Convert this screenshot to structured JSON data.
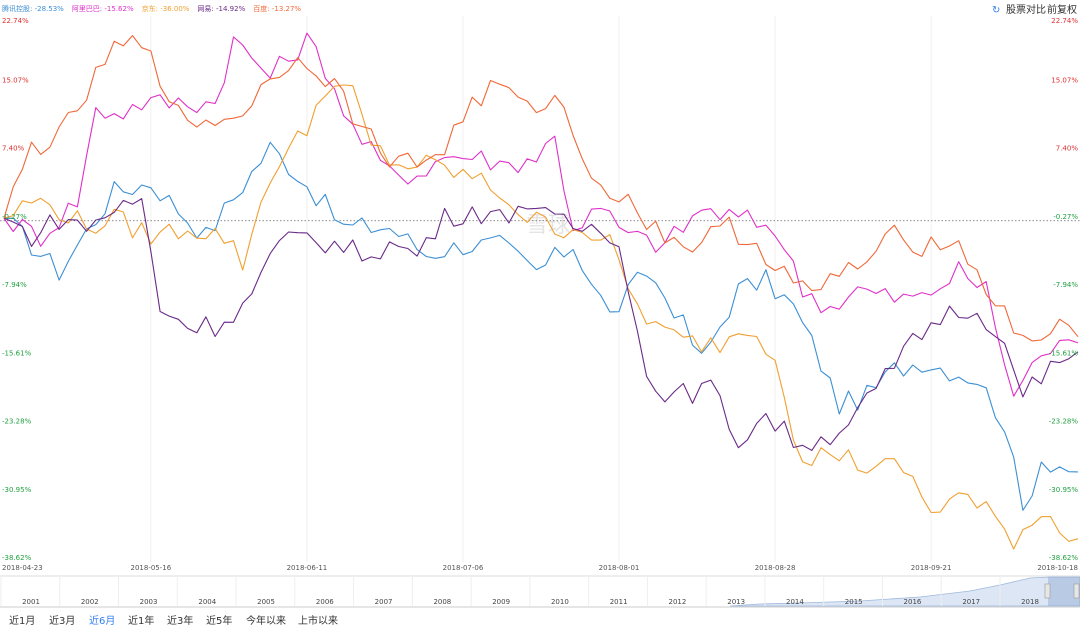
{
  "header": {
    "compare_label": "股票对比",
    "adjust_label": "前复权"
  },
  "legend": [
    {
      "name": "腾讯控股",
      "value": "-28.53%",
      "color": "#3c8fd4"
    },
    {
      "name": "阿里巴巴",
      "value": "-15.62%",
      "color": "#e030c8"
    },
    {
      "name": "京东",
      "value": "-36.00%",
      "color": "#f0a030"
    },
    {
      "name": "网易",
      "value": "-14.92%",
      "color": "#6a2a88"
    },
    {
      "name": "百度",
      "value": "-13.27%",
      "color": "#f06838"
    }
  ],
  "range_buttons": [
    "近1月",
    "近3月",
    "近6月",
    "近1年",
    "近3年",
    "近5年",
    "今年以来",
    "上市以来"
  ],
  "active_range": "近6月",
  "navigator_years": [
    "2001",
    "2002",
    "2003",
    "2004",
    "2005",
    "2006",
    "2007",
    "2008",
    "2009",
    "2010",
    "2011",
    "2012",
    "2013",
    "2014",
    "2015",
    "2016",
    "2017",
    "2018"
  ],
  "watermark_label": "雪球",
  "chart_data": {
    "type": "line",
    "y_axis_left": [
      "22.74%",
      "15.07%",
      "7.40%",
      "-0.27%",
      "-7.94%",
      "-15.61%",
      "-23.28%",
      "-30.95%",
      "-38.62%"
    ],
    "y_axis_right": [
      "22.74%",
      "15.07%",
      "7.40%",
      "-0.27%",
      "-7.94%",
      "-15.61%",
      "-23.28%",
      "-30.95%",
      "-38.62%"
    ],
    "ylim": [
      -38.62,
      22.74
    ],
    "baseline": -0.27,
    "x_ticks": [
      "2018-04-23",
      "2018-05-16",
      "2018-06-11",
      "2018-07-06",
      "2018-08-01",
      "2018-08-28",
      "2018-09-21",
      "2018-10-18"
    ],
    "x_tick_pos": [
      0,
      16,
      33,
      50,
      67,
      84,
      101,
      117
    ],
    "n_points": 118,
    "series": [
      {
        "name": "腾讯控股",
        "color": "#3c8fd4",
        "values": [
          [
            0,
            0
          ],
          [
            6,
            -6
          ],
          [
            12,
            3
          ],
          [
            16,
            4
          ],
          [
            22,
            -2
          ],
          [
            29,
            8
          ],
          [
            32,
            5
          ],
          [
            37,
            -1
          ],
          [
            42,
            -1
          ],
          [
            46,
            -4
          ],
          [
            50,
            -3
          ],
          [
            54,
            -3
          ],
          [
            58,
            -6
          ],
          [
            62,
            -3
          ],
          [
            66,
            -11
          ],
          [
            70,
            -6
          ],
          [
            73,
            -10
          ],
          [
            76,
            -16
          ],
          [
            80,
            -8
          ],
          [
            83,
            -7
          ],
          [
            86,
            -10
          ],
          [
            88,
            -14
          ],
          [
            91,
            -21
          ],
          [
            94,
            -20
          ],
          [
            97,
            -17
          ],
          [
            100,
            -16
          ],
          [
            103,
            -17
          ],
          [
            106,
            -18
          ],
          [
            109,
            -23
          ],
          [
            111,
            -33
          ],
          [
            113,
            -27
          ],
          [
            117,
            -28.5
          ]
        ]
      },
      {
        "name": "阿里巴巴",
        "color": "#e030c8",
        "values": [
          [
            0,
            0
          ],
          [
            4,
            -2
          ],
          [
            8,
            2
          ],
          [
            10,
            12
          ],
          [
            13,
            12
          ],
          [
            15,
            13
          ],
          [
            19,
            13
          ],
          [
            23,
            13
          ],
          [
            25,
            20
          ],
          [
            29,
            16
          ],
          [
            33,
            20
          ],
          [
            35,
            17
          ],
          [
            38,
            10
          ],
          [
            42,
            5
          ],
          [
            45,
            5
          ],
          [
            48,
            7
          ],
          [
            51,
            7
          ],
          [
            55,
            6
          ],
          [
            58,
            7
          ],
          [
            60,
            9
          ],
          [
            62,
            -1
          ],
          [
            65,
            1
          ],
          [
            68,
            -2
          ],
          [
            72,
            -3
          ],
          [
            76,
            1
          ],
          [
            80,
            0
          ],
          [
            84,
            -1
          ],
          [
            87,
            -8
          ],
          [
            90,
            -10
          ],
          [
            93,
            -8
          ],
          [
            97,
            -9
          ],
          [
            100,
            -9
          ],
          [
            104,
            -6
          ],
          [
            107,
            -8
          ],
          [
            110,
            -20
          ],
          [
            113,
            -15
          ],
          [
            117,
            -14
          ]
        ]
      },
      {
        "name": "京东",
        "color": "#f0a030",
        "values": [
          [
            0,
            0
          ],
          [
            3,
            2
          ],
          [
            6,
            1
          ],
          [
            9,
            -1
          ],
          [
            12,
            0
          ],
          [
            16,
            -2
          ],
          [
            20,
            -1
          ],
          [
            24,
            -2
          ],
          [
            26,
            -5
          ],
          [
            29,
            5
          ],
          [
            33,
            10
          ],
          [
            35,
            15
          ],
          [
            38,
            14
          ],
          [
            40,
            8
          ],
          [
            43,
            6
          ],
          [
            46,
            6
          ],
          [
            50,
            5
          ],
          [
            54,
            3
          ],
          [
            57,
            0
          ],
          [
            60,
            -1
          ],
          [
            63,
            -1
          ],
          [
            66,
            -3
          ],
          [
            69,
            -10
          ],
          [
            72,
            -13
          ],
          [
            75,
            -14
          ],
          [
            78,
            -14
          ],
          [
            81,
            -12
          ],
          [
            84,
            -15
          ],
          [
            87,
            -28
          ],
          [
            90,
            -26
          ],
          [
            94,
            -28
          ],
          [
            98,
            -28
          ],
          [
            101,
            -33
          ],
          [
            104,
            -31
          ],
          [
            107,
            -33
          ],
          [
            110,
            -36
          ],
          [
            113,
            -33
          ],
          [
            117,
            -36
          ]
        ]
      },
      {
        "name": "网易",
        "color": "#6a2a88",
        "values": [
          [
            0,
            0
          ],
          [
            3,
            -2
          ],
          [
            6,
            0
          ],
          [
            9,
            -1
          ],
          [
            12,
            1
          ],
          [
            15,
            2
          ],
          [
            17,
            -10
          ],
          [
            20,
            -12
          ],
          [
            23,
            -12
          ],
          [
            26,
            -10
          ],
          [
            30,
            -3
          ],
          [
            33,
            -2
          ],
          [
            36,
            -3
          ],
          [
            39,
            -4
          ],
          [
            42,
            -3
          ],
          [
            45,
            -4
          ],
          [
            48,
            0
          ],
          [
            51,
            1
          ],
          [
            54,
            0
          ],
          [
            57,
            2
          ],
          [
            59,
            0
          ],
          [
            62,
            -1
          ],
          [
            64,
            -1
          ],
          [
            67,
            -2
          ],
          [
            70,
            -18
          ],
          [
            73,
            -20
          ],
          [
            77,
            -19
          ],
          [
            80,
            -25
          ],
          [
            83,
            -22
          ],
          [
            86,
            -25
          ],
          [
            89,
            -25
          ],
          [
            93,
            -22
          ],
          [
            96,
            -18
          ],
          [
            99,
            -14
          ],
          [
            102,
            -11
          ],
          [
            105,
            -10
          ],
          [
            108,
            -12
          ],
          [
            111,
            -20
          ],
          [
            114,
            -17
          ],
          [
            117,
            -15
          ]
        ]
      },
      {
        "name": "百度",
        "color": "#f06838",
        "values": [
          [
            0,
            0
          ],
          [
            3,
            8
          ],
          [
            6,
            9
          ],
          [
            9,
            14
          ],
          [
            12,
            19
          ],
          [
            16,
            20
          ],
          [
            18,
            12
          ],
          [
            21,
            11
          ],
          [
            24,
            11
          ],
          [
            27,
            13
          ],
          [
            30,
            17
          ],
          [
            33,
            18
          ],
          [
            36,
            15
          ],
          [
            39,
            10
          ],
          [
            42,
            7
          ],
          [
            45,
            6
          ],
          [
            48,
            8
          ],
          [
            51,
            13
          ],
          [
            54,
            15
          ],
          [
            57,
            12
          ],
          [
            60,
            14
          ],
          [
            63,
            7
          ],
          [
            66,
            3
          ],
          [
            69,
            1
          ],
          [
            72,
            -2
          ],
          [
            75,
            -3
          ],
          [
            79,
            -1
          ],
          [
            82,
            -3
          ],
          [
            85,
            -6
          ],
          [
            88,
            -9
          ],
          [
            91,
            -6
          ],
          [
            94,
            -5
          ],
          [
            97,
            -2
          ],
          [
            100,
            -3
          ],
          [
            103,
            -2
          ],
          [
            106,
            -6
          ],
          [
            109,
            -11
          ],
          [
            112,
            -14
          ],
          [
            114,
            -12
          ],
          [
            117,
            -13.3
          ]
        ]
      }
    ]
  }
}
